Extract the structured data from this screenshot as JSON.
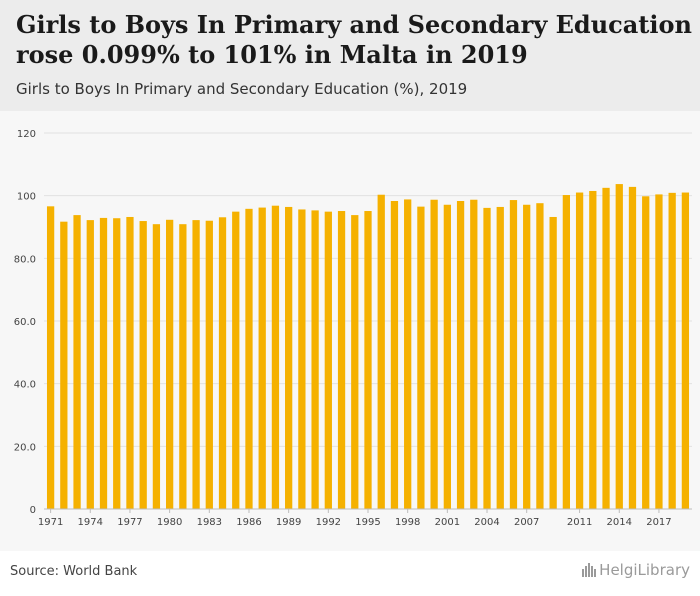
{
  "header": {
    "title": "Girls to Boys In Primary and Secondary Education rose 0.099% to 101% in Malta in 2019",
    "subtitle": "Girls to Boys In Primary and Secondary Education (%), 2019"
  },
  "footer": {
    "source": "Source: World Bank",
    "logo_text": "HelgiLibrary"
  },
  "colors": {
    "bar": "#f5b100",
    "grid": "#e2e2e2",
    "axis_text": "#444444"
  },
  "chart_data": {
    "type": "bar",
    "title": "Girls to Boys In Primary and Secondary Education (%), 2019",
    "xlabel": "",
    "ylabel": "",
    "ylim": [
      0,
      120
    ],
    "yticks": [
      0,
      20,
      40,
      60,
      80,
      100,
      120
    ],
    "ytick_labels": [
      "0",
      "20.0",
      "40.0",
      "60.0",
      "80.0",
      "100",
      "120"
    ],
    "grid": true,
    "categories": [
      "1971",
      "1972",
      "1973",
      "1974",
      "1975",
      "1976",
      "1977",
      "1978",
      "1979",
      "1980",
      "1981",
      "1982",
      "1983",
      "1984",
      "1985",
      "1986",
      "1987",
      "1988",
      "1989",
      "1990",
      "1991",
      "1992",
      "1993",
      "1994",
      "1995",
      "1996",
      "1997",
      "1998",
      "1999",
      "2000",
      "2001",
      "2002",
      "2003",
      "2004",
      "2005",
      "2006",
      "2007",
      "2008",
      "2009",
      "2010",
      "2011",
      "2012",
      "2013",
      "2014",
      "2015",
      "2016",
      "2017",
      "2018",
      "2019"
    ],
    "xtick_labels": [
      "1971",
      "1974",
      "1977",
      "1980",
      "1983",
      "1986",
      "1989",
      "1992",
      "1995",
      "1998",
      "2001",
      "2004",
      "2007",
      "2011",
      "2014",
      "2017"
    ],
    "values": [
      96.6,
      91.7,
      93.8,
      92.2,
      92.9,
      92.8,
      93.2,
      91.9,
      90.9,
      92.3,
      90.9,
      92.2,
      92.0,
      93.1,
      94.9,
      95.8,
      96.2,
      96.8,
      96.4,
      95.6,
      95.3,
      94.9,
      95.1,
      93.8,
      95.1,
      100.3,
      98.3,
      98.8,
      96.5,
      98.7,
      97.1,
      98.3,
      98.7,
      96.1,
      96.4,
      98.6,
      97.1,
      97.6,
      93.2,
      100.2,
      101.0,
      101.5,
      102.5,
      103.7,
      102.8,
      99.8,
      100.4,
      100.9,
      101.0
    ]
  }
}
